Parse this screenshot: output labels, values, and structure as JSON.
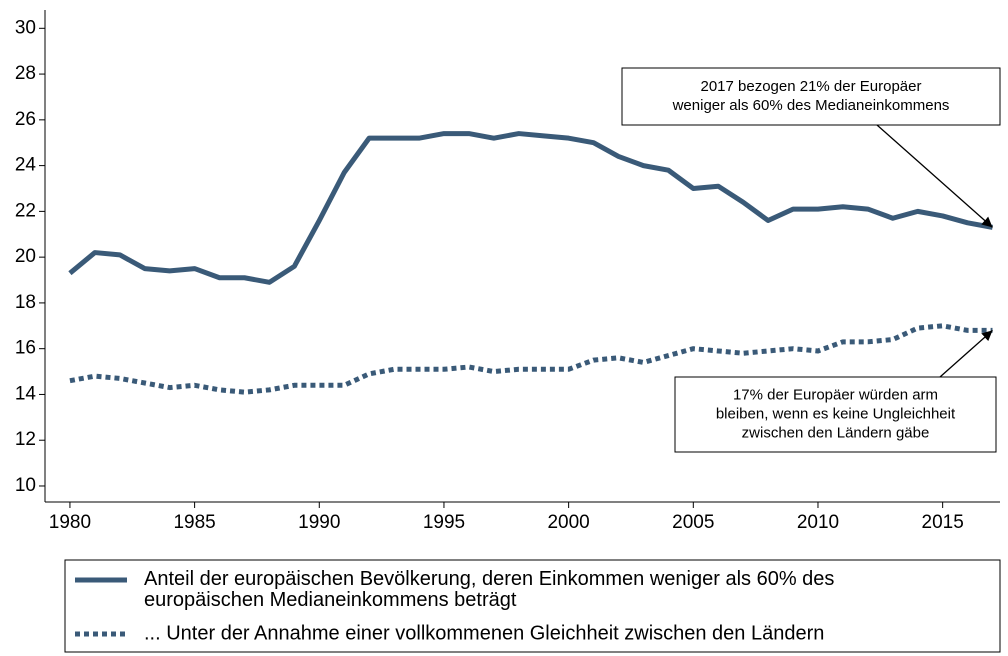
{
  "chart_data": {
    "type": "line",
    "x": [
      1980,
      1981,
      1982,
      1983,
      1984,
      1985,
      1986,
      1987,
      1988,
      1989,
      1990,
      1991,
      1992,
      1993,
      1994,
      1995,
      1996,
      1997,
      1998,
      1999,
      2000,
      2001,
      2002,
      2003,
      2004,
      2005,
      2006,
      2007,
      2008,
      2009,
      2010,
      2011,
      2012,
      2013,
      2014,
      2015,
      2016,
      2017
    ],
    "series": [
      {
        "name": "Anteil der europäischen Bevölkerung, deren Einkommen weniger als 60% des europäischen Medianeinkommens beträgt",
        "color": "#3a5a78",
        "dash": "solid",
        "values": [
          19.3,
          20.2,
          20.1,
          19.5,
          19.4,
          19.5,
          19.1,
          19.1,
          18.9,
          19.6,
          21.6,
          23.7,
          25.2,
          25.2,
          25.2,
          25.4,
          25.4,
          25.2,
          25.4,
          25.3,
          25.2,
          25.0,
          24.4,
          24.0,
          23.8,
          23.0,
          23.1,
          22.4,
          21.6,
          22.1,
          22.1,
          22.2,
          22.1,
          21.7,
          22.0,
          21.8,
          21.5,
          21.3
        ]
      },
      {
        "name": "... Unter der Annahme einer vollkommenen Gleichheit zwischen den Ländern",
        "color": "#3a5a78",
        "dash": "dotted",
        "values": [
          14.6,
          14.8,
          14.7,
          14.5,
          14.3,
          14.4,
          14.2,
          14.1,
          14.2,
          14.4,
          14.4,
          14.4,
          14.9,
          15.1,
          15.1,
          15.1,
          15.2,
          15.0,
          15.1,
          15.1,
          15.1,
          15.5,
          15.6,
          15.4,
          15.7,
          16.0,
          15.9,
          15.8,
          15.9,
          16.0,
          15.9,
          16.3,
          16.3,
          16.4,
          16.9,
          17.0,
          16.8,
          16.8
        ]
      }
    ],
    "xlim": [
      1979,
      2017.3
    ],
    "xticks": [
      1980,
      1985,
      1990,
      1995,
      2000,
      2005,
      2010,
      2015
    ],
    "ylim": [
      9.3,
      30.8
    ],
    "yticks": [
      10,
      12,
      14,
      16,
      18,
      20,
      22,
      24,
      26,
      28,
      30
    ],
    "grid": false,
    "annotations": [
      {
        "lines": [
          "2017 bezogen 21% der Europäer",
          "weniger als 60% des Medianeinkommens"
        ]
      },
      {
        "lines": [
          "17% der Europäer würden arm",
          "bleiben, wenn es keine Ungleichheit",
          "zwischen den Ländern gäbe"
        ]
      }
    ]
  }
}
